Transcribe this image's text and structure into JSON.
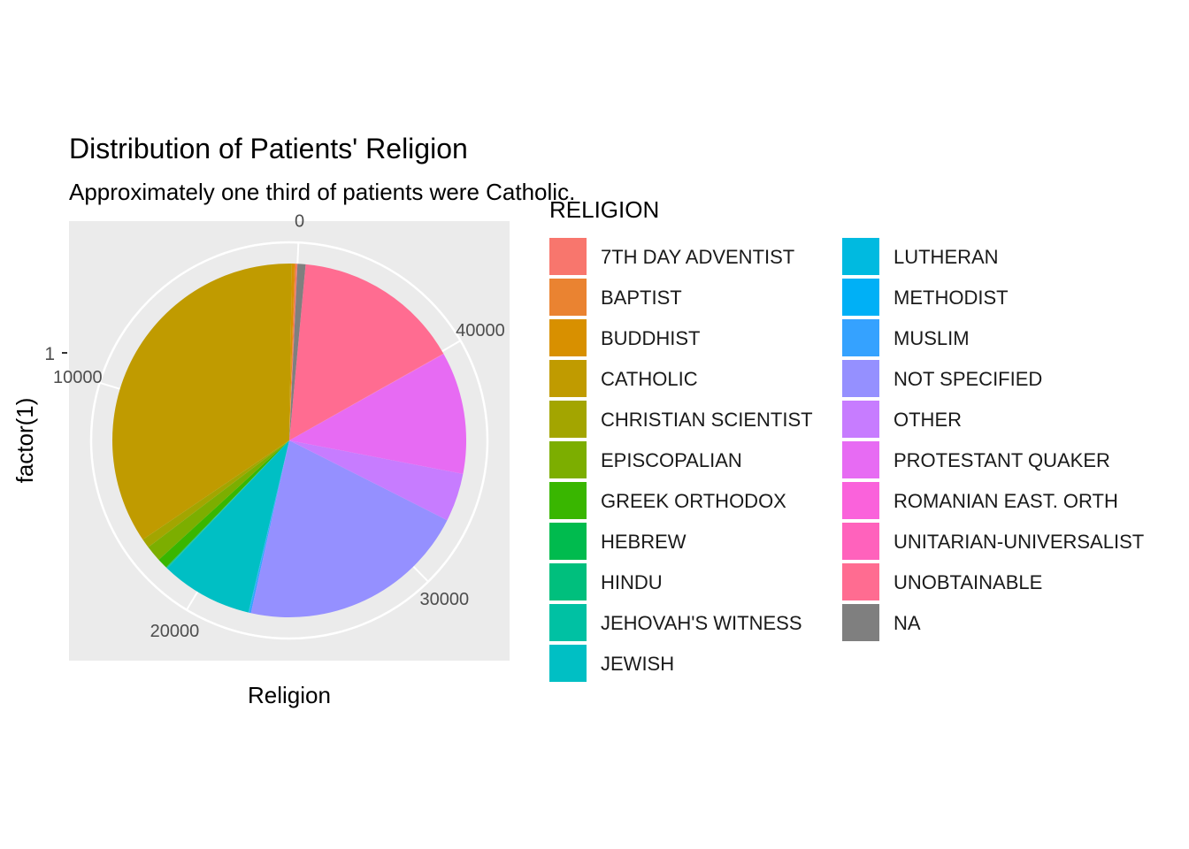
{
  "chart_data": {
    "type": "pie",
    "title": "Distribution of Patients' Religion",
    "subtitle": "Approximately one third of patients were Catholic.",
    "xlabel": "Religion",
    "ylabel": "factor(1)",
    "y_tick_labels": [
      "1"
    ],
    "radial_axis": {
      "ticks": [
        0,
        10000,
        20000,
        30000,
        40000
      ],
      "max": 46000
    },
    "legend": {
      "title": "RELIGION",
      "placement": "right",
      "columns": 2
    },
    "grid": true,
    "slices": [
      {
        "label": "7TH DAY ADVENTIST",
        "value": 60,
        "color": "#F8766D"
      },
      {
        "label": "BAPTIST",
        "value": 60,
        "color": "#EA8331"
      },
      {
        "label": "BUDDHIST",
        "value": 120,
        "color": "#D89000"
      },
      {
        "label": "CATHOLIC",
        "value": 16500,
        "color": "#C09B00"
      },
      {
        "label": "CHRISTIAN SCIENTIST",
        "value": 400,
        "color": "#A3A500"
      },
      {
        "label": "EPISCOPALIAN",
        "value": 700,
        "color": "#7CAE00"
      },
      {
        "label": "GREEK ORTHODOX",
        "value": 450,
        "color": "#39B600"
      },
      {
        "label": "HEBREW",
        "value": 20,
        "color": "#00BB4E"
      },
      {
        "label": "HINDU",
        "value": 20,
        "color": "#00BF7D"
      },
      {
        "label": "JEHOVAH'S WITNESS",
        "value": 25,
        "color": "#00C1A3"
      },
      {
        "label": "JEWISH",
        "value": 4000,
        "color": "#00BFC4"
      },
      {
        "label": "LUTHERAN",
        "value": 10,
        "color": "#00BAE0"
      },
      {
        "label": "METHODIST",
        "value": 20,
        "color": "#00B0F6"
      },
      {
        "label": "MUSLIM",
        "value": 80,
        "color": "#35A2FF"
      },
      {
        "label": "NOT SPECIFIED",
        "value": 10000,
        "color": "#9590FF"
      },
      {
        "label": "OTHER",
        "value": 2100,
        "color": "#C77CFF"
      },
      {
        "label": "PROTESTANT QUAKER",
        "value": 5300,
        "color": "#E76BF3"
      },
      {
        "label": "ROMANIAN EAST. ORTH",
        "value": 10,
        "color": "#FA62DB"
      },
      {
        "label": "UNITARIAN-UNIVERSALIST",
        "value": 15,
        "color": "#FF62BC"
      },
      {
        "label": "UNOBTAINABLE",
        "value": 7300,
        "color": "#FF6C91"
      },
      {
        "label": "NA",
        "value": 350,
        "color": "#7F7F7F"
      }
    ]
  }
}
